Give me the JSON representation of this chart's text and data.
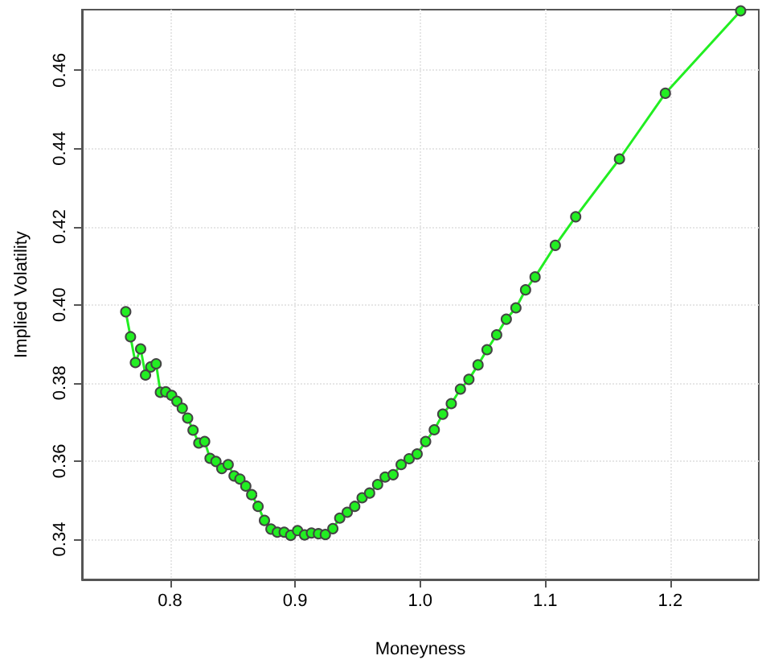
{
  "chart_data": {
    "type": "line",
    "xlabel": "Moneyness",
    "ylabel": "Implied Volatility",
    "xlim": [
      0.7296,
      1.2708
    ],
    "ylim": [
      0.3297,
      0.4755
    ],
    "xticks": [
      {
        "value": 0.8,
        "label": "0.8"
      },
      {
        "value": 0.9,
        "label": "0.9"
      },
      {
        "value": 1.0,
        "label": "1.0"
      },
      {
        "value": 1.1,
        "label": "1.1"
      },
      {
        "value": 1.2,
        "label": "1.2"
      }
    ],
    "yticks": [
      {
        "value": 0.34,
        "label": "0.34"
      },
      {
        "value": 0.36,
        "label": "0.36"
      },
      {
        "value": 0.38,
        "label": "0.38"
      },
      {
        "value": 0.4,
        "label": "0.40"
      },
      {
        "value": 0.42,
        "label": "0.42"
      },
      {
        "value": 0.44,
        "label": "0.44"
      },
      {
        "value": 0.46,
        "label": "0.46"
      }
    ],
    "grid": true,
    "marker": "circle",
    "line_style": "solid",
    "series": [
      {
        "color": "#22ee22",
        "x": [
          0.7646,
          0.7684,
          0.7723,
          0.7765,
          0.7804,
          0.7846,
          0.7889,
          0.7923,
          0.7966,
          0.8013,
          0.8055,
          0.8098,
          0.8141,
          0.8184,
          0.823,
          0.8277,
          0.832,
          0.8367,
          0.8414,
          0.8465,
          0.8512,
          0.8559,
          0.8606,
          0.8653,
          0.8704,
          0.8755,
          0.8807,
          0.8858,
          0.8913,
          0.8965,
          0.902,
          0.9076,
          0.9131,
          0.9187,
          0.9242,
          0.9302,
          0.9357,
          0.9417,
          0.9477,
          0.9536,
          0.9596,
          0.966,
          0.972,
          0.9784,
          0.9848,
          0.9912,
          0.9976,
          1.0044,
          1.0113,
          1.0181,
          1.0249,
          1.0322,
          1.039,
          1.0463,
          1.0535,
          1.0612,
          1.0689,
          1.0766,
          1.0843,
          1.0919,
          1.1081,
          1.1244,
          1.1594,
          1.1961,
          1.2563
        ],
        "values": [
          0.3982,
          0.3918,
          0.3852,
          0.3887,
          0.382,
          0.3841,
          0.3849,
          0.3776,
          0.3777,
          0.3768,
          0.3753,
          0.3735,
          0.371,
          0.3679,
          0.3646,
          0.365,
          0.3607,
          0.3599,
          0.3581,
          0.3591,
          0.3562,
          0.3554,
          0.3536,
          0.3514,
          0.3484,
          0.3448,
          0.3426,
          0.3418,
          0.3418,
          0.341,
          0.3422,
          0.3411,
          0.3416,
          0.3414,
          0.3412,
          0.3427,
          0.3454,
          0.3469,
          0.3484,
          0.3506,
          0.3518,
          0.354,
          0.3559,
          0.3565,
          0.3591,
          0.3606,
          0.3618,
          0.365,
          0.368,
          0.372,
          0.3747,
          0.3784,
          0.3809,
          0.3846,
          0.3885,
          0.3923,
          0.3963,
          0.3992,
          0.4038,
          0.4071,
          0.4152,
          0.4225,
          0.4373,
          0.4541,
          0.4752
        ]
      }
    ]
  }
}
